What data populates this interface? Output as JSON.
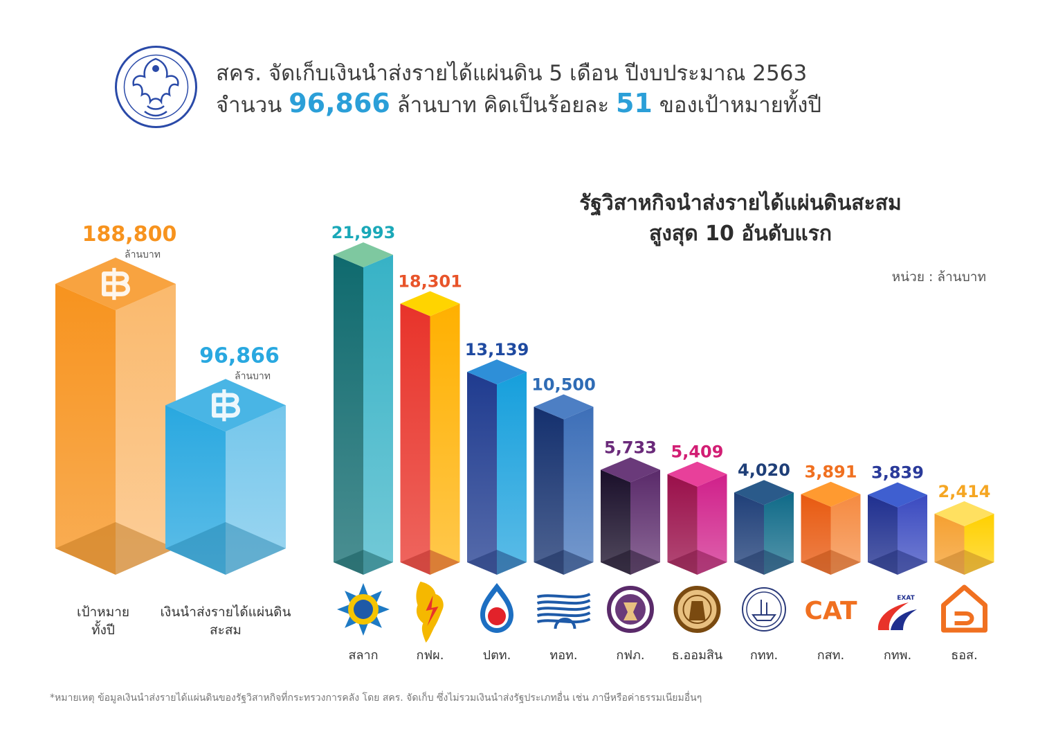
{
  "header": {
    "line1": "สคร. จัดเก็บเงินนำส่งรายได้แผ่นดิน 5 เดือน ปีงบประมาณ 2563",
    "line2_pre": "จำนวน ",
    "line2_amount": "96,866",
    "line2_mid": " ล้านบาท คิดเป็นร้อยละ ",
    "line2_pct": "51",
    "line2_post": " ของเป้าหมายทั้งปี",
    "logo_icon": "sepo-garuda-seal"
  },
  "footnote": "*หมายเหตุ ข้อมูลเงินนำส่งรายได้แผ่นดินของรัฐวิสาหกิจที่กระทรวงการคลัง โดย สคร. จัดเก็บ ซึ่งไม่รวมเงินนำส่งรัฐประเภทอื่น เช่น ภาษีหรือค่าธรรมเนียมอื่นๆ",
  "chart_data": [
    {
      "type": "bar",
      "title": "",
      "categories": [
        "เป้าหมาย\nทั้งปี",
        "เงินนำส่งรายได้แผ่นดิน\nสะสม"
      ],
      "values": [
        188800,
        96866
      ],
      "value_labels": [
        "188,800",
        "96,866"
      ],
      "value_unit": "ล้านบาท",
      "colors": [
        "#f7931e",
        "#29a8e0"
      ],
      "icon": "baht-icon",
      "ylim": [
        0,
        188800
      ],
      "grid": false,
      "legend": "none"
    },
    {
      "type": "bar",
      "title": "รัฐวิสาหกิจนำส่งรายได้แผ่นดินสะสม\nสูงสุด 10 อันดับแรก",
      "unit_label": "หน่วย : ล้านบาท",
      "categories": [
        "สลาก",
        "กฟผ.",
        "ปตท.",
        "ทอท.",
        "กฟภ.",
        "ธ.ออมสิน",
        "กทท.",
        "กสท.",
        "กทพ.",
        "ธอส."
      ],
      "values": [
        21993,
        18301,
        13139,
        10500,
        5733,
        5409,
        4020,
        3891,
        3839,
        2414
      ],
      "value_labels": [
        "21,993",
        "18,301",
        "13,139",
        "10,500",
        "5,733",
        "5,409",
        "4,020",
        "3,891",
        "3,839",
        "2,414"
      ],
      "label_colors": [
        "#1aa8b8",
        "#e8542a",
        "#1f4aa0",
        "#2f6cb5",
        "#6a2a7a",
        "#d21e74",
        "#1f3f78",
        "#f07020",
        "#2a3a9a",
        "#f5a623"
      ],
      "bar_colors": [
        [
          "#0f6a6e",
          "#37b2c6",
          "#7ec8a0"
        ],
        [
          "#e8332a",
          "#ffb000",
          "#ffd400"
        ],
        [
          "#1f3b8f",
          "#169fdc",
          "#2e8fd8"
        ],
        [
          "#14306e",
          "#3d6fb8",
          "#4d7fc4"
        ],
        [
          "#1a0f2a",
          "#5a2a6a",
          "#6a3a7a"
        ],
        [
          "#9a0f4a",
          "#d0208a",
          "#e8409a"
        ],
        [
          "#1f3f78",
          "#0f6a88",
          "#2a5a8a"
        ],
        [
          "#e85a10",
          "#f58a40",
          "#ff9a30"
        ],
        [
          "#1f2f8f",
          "#3a4ac0",
          "#3f5fd0"
        ],
        [
          "#f5a030",
          "#ffd000",
          "#ffe060"
        ]
      ],
      "logos": [
        "glo-star-icon",
        "egat-map-icon",
        "ptt-flame-icon",
        "aot-wave-icon",
        "pea-seal-icon",
        "gsb-seal-icon",
        "pat-seal-icon",
        "cat-text-icon",
        "exat-road-icon",
        "ghb-house-icon"
      ],
      "cat_logo_text": "CAT",
      "exat_logo_text": "EXAT",
      "ylim": [
        0,
        21993
      ],
      "grid": false,
      "legend": "none"
    }
  ]
}
